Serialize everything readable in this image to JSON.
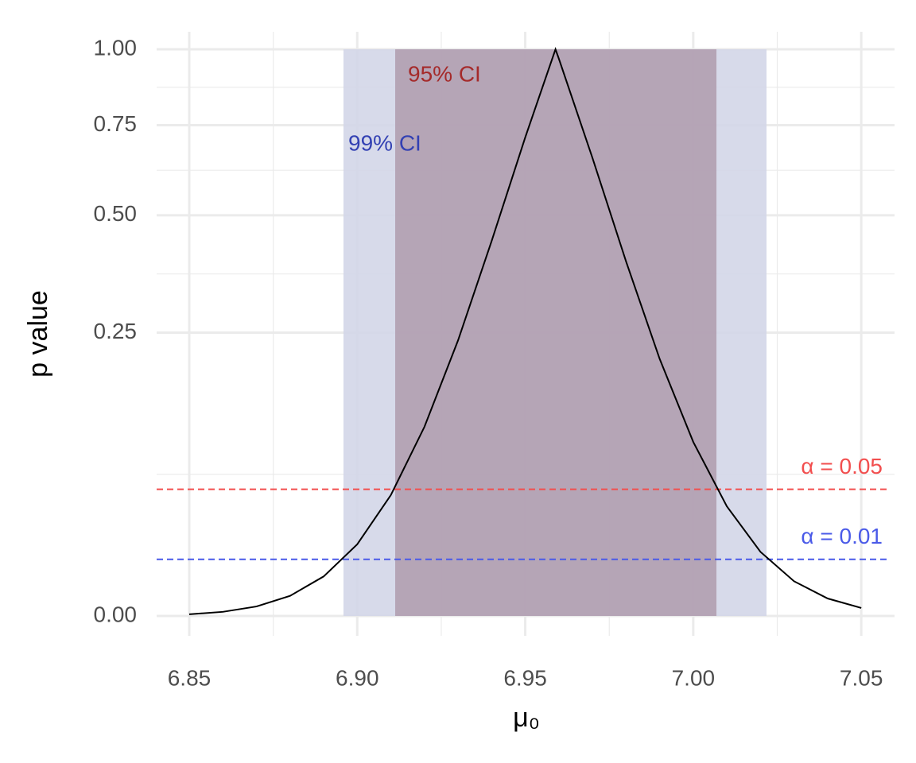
{
  "chart_data": {
    "type": "line",
    "x_label": "μ₀",
    "y_label": "p value",
    "x": [
      6.85,
      6.86,
      6.87,
      6.88,
      6.89,
      6.9,
      6.91,
      6.92,
      6.93,
      6.94,
      6.95,
      6.959,
      6.96,
      6.97,
      6.98,
      6.99,
      7.0,
      7.01,
      7.02,
      7.03,
      7.04,
      7.05
    ],
    "series": [
      {
        "color": "#000000",
        "values": [
          8.6e-06,
          5.3e-05,
          0.00028,
          0.00126,
          0.00486,
          0.016,
          0.0455,
          0.1114,
          0.2365,
          0.4378,
          0.7134,
          1,
          0.967,
          0.6534,
          0.3914,
          0.2058,
          0.0943,
          0.0374,
          0.0128,
          0.00375,
          0.00095,
          0.0002
        ]
      }
    ],
    "bands": [
      {
        "name": "99% CI",
        "xmin": 6.8959,
        "xmax": 7.0218,
        "color": "#d3d6e8",
        "label_color": "#3341b3"
      },
      {
        "name": "95% CI",
        "xmin": 6.9113,
        "xmax": 7.0069,
        "color": "#b19fb0",
        "label_color": "#a52a2a"
      }
    ],
    "hlines": [
      {
        "value": 0.05,
        "label": "α = 0.05",
        "color": "#f24e4e"
      },
      {
        "value": 0.01,
        "label": "α = 0.01",
        "color": "#4a5ae8"
      }
    ],
    "xlim": [
      6.8403,
      7.0599
    ],
    "xticks": [
      6.85,
      {
        "value": 6.9,
        "label": "6.90"
      },
      6.95,
      {
        "value": 7,
        "label": "7.00"
      },
      7.05
    ],
    "ylim": [
      0,
      1
    ],
    "yticks": [
      {
        "value": 0,
        "label": "0.00"
      },
      0.25,
      {
        "value": 0.5,
        "label": "0.50"
      },
      0.75,
      {
        "value": 1,
        "label": "1.00"
      }
    ],
    "y_scale": "sqrt",
    "grid": true,
    "minor_grid": true
  }
}
